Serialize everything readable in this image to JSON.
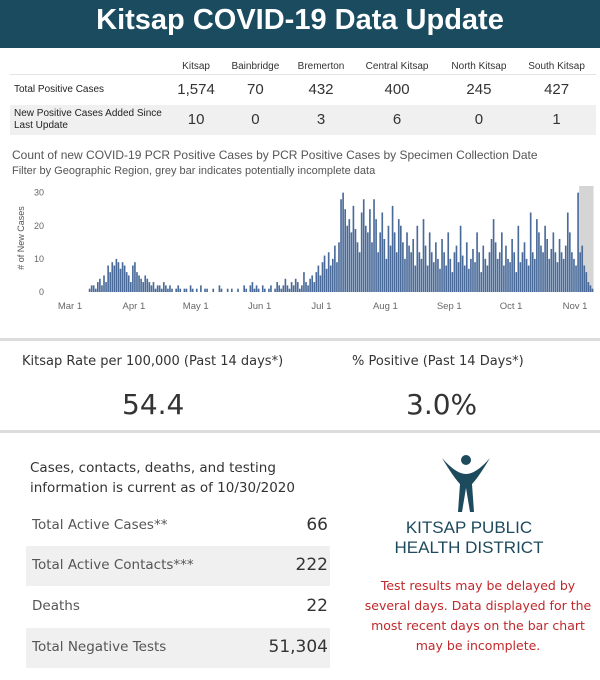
{
  "banner": {
    "title": "Kitsap COVID-19 Data Update"
  },
  "case_table": {
    "columns": [
      "Kitsap",
      "Bainbridge",
      "Bremerton",
      "Central Kitsap",
      "North Kitsap",
      "South Kitsap"
    ],
    "rows": [
      {
        "label": "Total Positive Cases",
        "values": [
          "1,574",
          "70",
          "432",
          "400",
          "245",
          "427"
        ]
      },
      {
        "label": "New Positive Cases Added Since Last Update",
        "values": [
          "10",
          "0",
          "3",
          "6",
          "0",
          "1"
        ]
      }
    ]
  },
  "chart": {
    "title": "Count of new COVID-19 PCR Positive Cases by PCR Positive Cases by Specimen Collection Date",
    "subtitle": "Filter by Geographic Region, grey bar indicates potentially incomplete data"
  },
  "chart_data": {
    "type": "bar",
    "ylabel": "# of New Cases",
    "ylim": [
      0,
      32
    ],
    "yticks": [
      0,
      10,
      20,
      30
    ],
    "x_start_label": "Mar 1",
    "incomplete_last_days": 7,
    "xticks": [
      {
        "label": "Mar 1",
        "day": 0
      },
      {
        "label": "Apr 1",
        "day": 31
      },
      {
        "label": "May 1",
        "day": 61
      },
      {
        "label": "Jun 1",
        "day": 92
      },
      {
        "label": "Jul 1",
        "day": 122
      },
      {
        "label": "Aug 1",
        "day": 153
      },
      {
        "label": "Sep 1",
        "day": 184
      },
      {
        "label": "Oct 1",
        "day": 214
      },
      {
        "label": "Nov 1",
        "day": 245
      }
    ],
    "values": [
      0,
      0,
      0,
      0,
      0,
      0,
      0,
      0,
      0,
      1,
      2,
      2,
      1,
      3,
      4,
      2,
      5,
      3,
      8,
      6,
      9,
      8,
      10,
      9,
      7,
      9,
      8,
      6,
      5,
      3,
      8,
      9,
      6,
      5,
      4,
      3,
      5,
      4,
      3,
      2,
      3,
      1,
      2,
      2,
      1,
      3,
      2,
      1,
      2,
      1,
      0,
      1,
      2,
      1,
      0,
      1,
      1,
      0,
      2,
      1,
      0,
      1,
      0,
      2,
      0,
      1,
      1,
      0,
      0,
      1,
      0,
      0,
      2,
      1,
      0,
      0,
      1,
      0,
      1,
      0,
      0,
      1,
      0,
      0,
      2,
      1,
      0,
      2,
      3,
      1,
      2,
      1,
      0,
      2,
      1,
      0,
      1,
      2,
      0,
      1,
      3,
      2,
      1,
      2,
      4,
      2,
      1,
      3,
      2,
      4,
      3,
      1,
      2,
      6,
      3,
      2,
      4,
      5,
      3,
      6,
      8,
      5,
      9,
      11,
      7,
      12,
      8,
      10,
      14,
      9,
      15,
      28,
      30,
      25,
      20,
      22,
      18,
      26,
      19,
      15,
      12,
      24,
      28,
      20,
      18,
      25,
      15,
      28,
      22,
      12,
      18,
      24,
      16,
      10,
      20,
      14,
      26,
      18,
      12,
      22,
      20,
      15,
      10,
      18,
      14,
      12,
      16,
      8,
      20,
      12,
      10,
      22,
      14,
      8,
      18,
      12,
      9,
      15,
      10,
      7,
      16,
      12,
      8,
      18,
      10,
      6,
      12,
      14,
      9,
      20,
      11,
      8,
      15,
      7,
      10,
      13,
      9,
      18,
      12,
      6,
      14,
      10,
      8,
      12,
      16,
      22,
      15,
      10,
      12,
      18,
      8,
      14,
      10,
      9,
      16,
      12,
      6,
      20,
      9,
      12,
      15,
      10,
      8,
      24,
      12,
      10,
      22,
      18,
      14,
      12,
      20,
      16,
      10,
      13,
      18,
      12,
      9,
      16,
      12,
      10,
      14,
      24,
      18,
      12,
      10,
      8,
      30,
      12,
      14,
      8,
      6,
      3,
      2,
      1
    ]
  },
  "rates": [
    {
      "label": "Kitsap Rate per 100,000 (Past 14 days*)",
      "value": "54.4"
    },
    {
      "label": "% Positive (Past 14 Days*)",
      "value": "3.0%"
    }
  ],
  "current_note": "Cases, contacts, deaths, and testing information is current as of 10/30/2020",
  "stats": [
    {
      "label": "Total Active Cases**",
      "value": "66"
    },
    {
      "label": "Total Active Contacts***",
      "value": "222"
    },
    {
      "label": "Deaths",
      "value": "22"
    },
    {
      "label": "Total Negative Tests",
      "value": "51,304"
    }
  ],
  "logo": {
    "line1": "KITSAP PUBLIC",
    "line2": "HEALTH DISTRICT",
    "icon": "human-figure-icon"
  },
  "disclaimer": "Test results may be delayed by several days. Data displayed for the most recent days on the bar chart may be incomplete.",
  "colors": {
    "banner": "#1a4b5f",
    "bar": "#4a6b9a",
    "incomplete_band": "#d5d5d5",
    "disclaimer": "#c0282b",
    "logo": "#1e4a5e"
  }
}
